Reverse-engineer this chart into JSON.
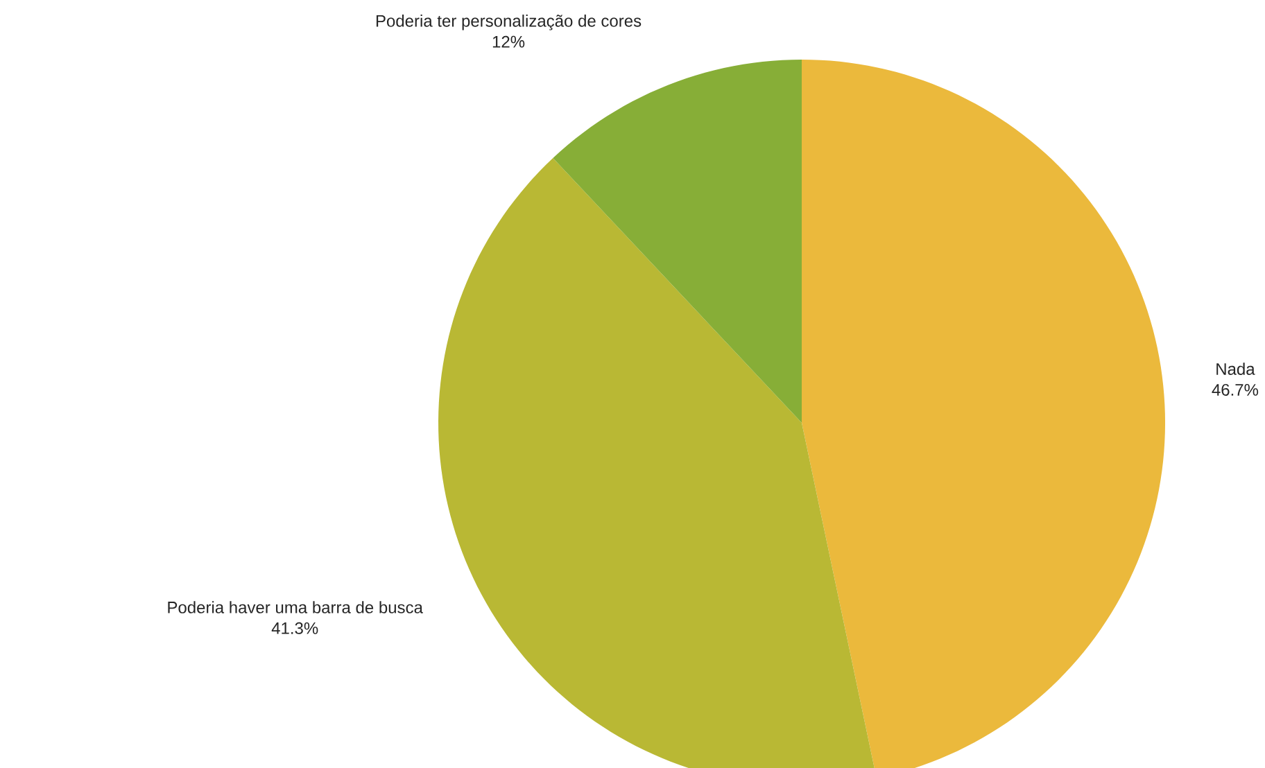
{
  "chart_data": {
    "type": "pie",
    "categories": [
      "Nada",
      "Poderia haver uma barra de busca",
      "Poderia ter personalização de cores"
    ],
    "values": [
      46.7,
      41.3,
      12
    ],
    "value_labels": [
      "46.7%",
      "41.3%",
      "12%"
    ],
    "colors": [
      "#ebb93c",
      "#b9b834",
      "#87ae37"
    ]
  }
}
